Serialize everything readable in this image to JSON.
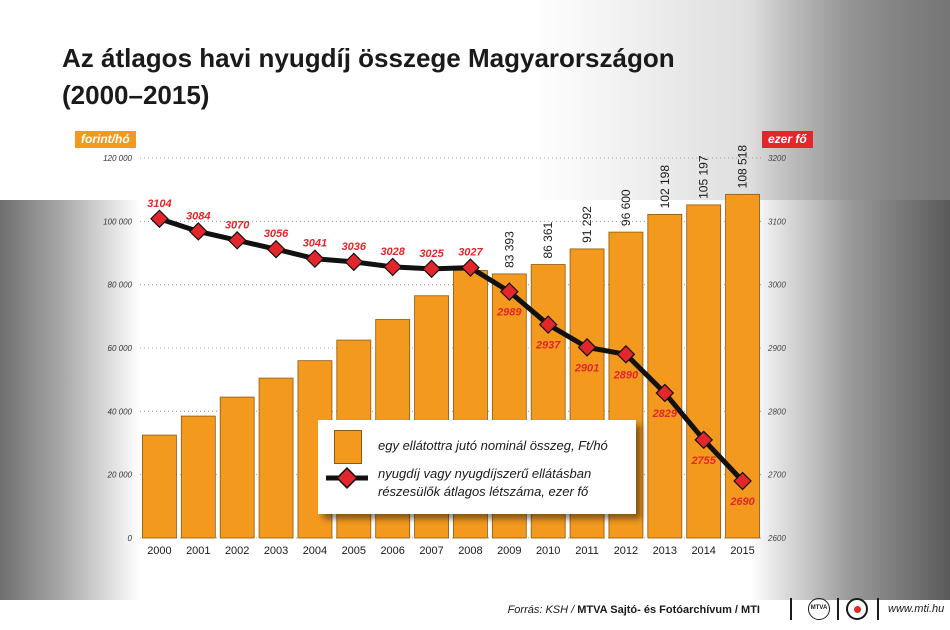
{
  "title": {
    "line1": "Az átlagos havi nyugdíj összege Magyarországon",
    "line2": "(2000–2015)"
  },
  "chart_data": {
    "type": "bar",
    "categories": [
      "2000",
      "2001",
      "2002",
      "2003",
      "2004",
      "2005",
      "2006",
      "2007",
      "2008",
      "2009",
      "2010",
      "2011",
      "2012",
      "2013",
      "2014",
      "2015"
    ],
    "left_axis": {
      "unit": "forint/hó",
      "ylim": [
        0,
        120000
      ],
      "ticks": [
        0,
        20000,
        40000,
        60000,
        80000,
        100000,
        120000
      ],
      "tick_labels": [
        "0",
        "20 000",
        "40 000",
        "60 000",
        "80 000",
        "100 000",
        "120 000"
      ]
    },
    "right_axis": {
      "unit": "ezer fő",
      "ylim": [
        2600,
        3200
      ],
      "ticks": [
        2600,
        2700,
        2800,
        2900,
        3000,
        3100,
        3200
      ],
      "tick_labels": [
        "2600",
        "2700",
        "2800",
        "2900",
        "3000",
        "3100",
        "3200"
      ]
    },
    "series": [
      {
        "name": "egy ellátottra jutó nominál összeg, Ft/hó",
        "type": "bar",
        "axis": "left",
        "color": "#f39a1e",
        "values": [
          32500,
          38500,
          44500,
          50500,
          56000,
          62500,
          69000,
          76500,
          84500,
          83393,
          86361,
          91292,
          96600,
          102198,
          105197,
          108518
        ],
        "labels": [
          "",
          "",
          "",
          "",
          "",
          "",
          "",
          "",
          "",
          "83 393",
          "86 361",
          "91 292",
          "96 600",
          "102 198",
          "105 197",
          "108 518"
        ]
      },
      {
        "name": "nyugdíj vagy nyugdíjszerű ellátásban részesülők átlagos létszáma, ezer fő",
        "type": "line",
        "axis": "right",
        "color": "#111111",
        "marker_color": "#e3262c",
        "values": [
          3104,
          3084,
          3070,
          3056,
          3041,
          3036,
          3028,
          3025,
          3027,
          2989,
          2937,
          2901,
          2890,
          2829,
          2755,
          2690
        ],
        "labels": [
          "3104",
          "3084",
          "3070",
          "3056",
          "3041",
          "3036",
          "3028",
          "3025",
          "3027",
          "2989",
          "2937",
          "2901",
          "2890",
          "2829",
          "2755",
          "2690"
        ]
      }
    ],
    "legend_placement": "bottom-center",
    "grid": "horizontal-dotted"
  },
  "footer": {
    "source_prefix": "Forrás: KSH / ",
    "source_bold": "MTVA Sajtó- és Fotóarchívum / MTI",
    "mtva_logo_text": "MTVA",
    "url": "www.mti.hu"
  },
  "colors": {
    "bar": "#f39a1e",
    "line": "#111111",
    "marker": "#e3262c",
    "left_unit_bg": "#f39a1e",
    "right_unit_bg": "#e3262c"
  }
}
